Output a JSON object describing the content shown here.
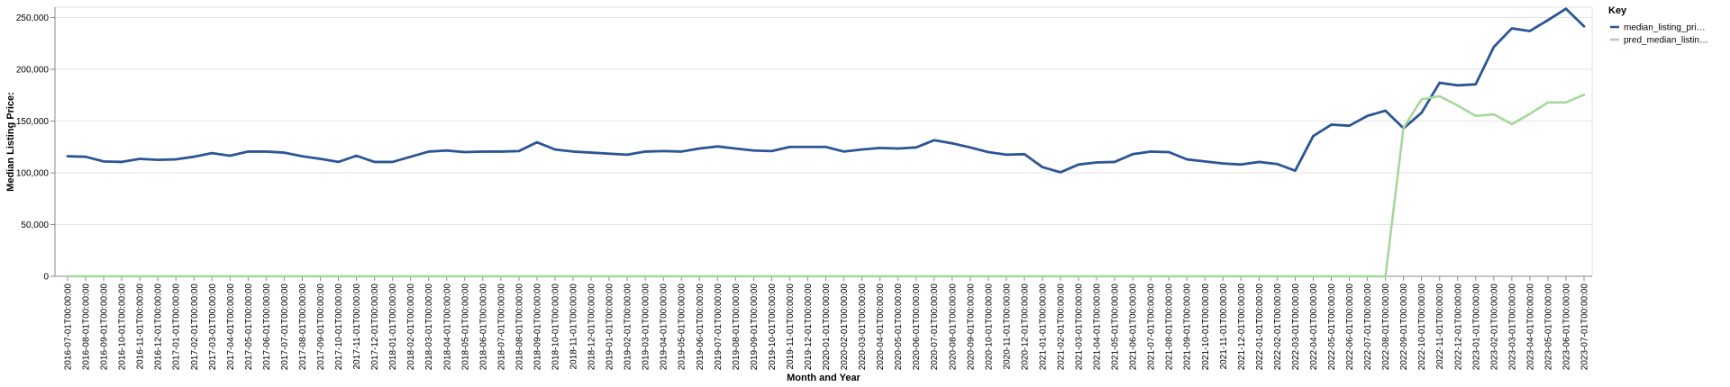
{
  "chart_data": {
    "type": "line",
    "xlabel": "Month and Year",
    "ylabel": "Median Listing Price:",
    "ylim": [
      0,
      260000
    ],
    "yticks": [
      0,
      50000,
      100000,
      150000,
      200000,
      250000
    ],
    "ytick_labels": [
      "0",
      "50,000",
      "100,000",
      "150,000",
      "200,000",
      "250,000"
    ],
    "grid": true,
    "legend_title": "Key",
    "legend_position": "right",
    "x": [
      "2016-07-01T00:00:00",
      "2016-08-01T00:00:00",
      "2016-09-01T00:00:00",
      "2016-10-01T00:00:00",
      "2016-11-01T00:00:00",
      "2016-12-01T00:00:00",
      "2017-01-01T00:00:00",
      "2017-02-01T00:00:00",
      "2017-03-01T00:00:00",
      "2017-04-01T00:00:00",
      "2017-05-01T00:00:00",
      "2017-06-01T00:00:00",
      "2017-07-01T00:00:00",
      "2017-08-01T00:00:00",
      "2017-09-01T00:00:00",
      "2017-10-01T00:00:00",
      "2017-11-01T00:00:00",
      "2017-12-01T00:00:00",
      "2018-01-01T00:00:00",
      "2018-02-01T00:00:00",
      "2018-03-01T00:00:00",
      "2018-04-01T00:00:00",
      "2018-05-01T00:00:00",
      "2018-06-01T00:00:00",
      "2018-07-01T00:00:00",
      "2018-08-01T00:00:00",
      "2018-09-01T00:00:00",
      "2018-10-01T00:00:00",
      "2018-11-01T00:00:00",
      "2018-12-01T00:00:00",
      "2019-01-01T00:00:00",
      "2019-02-01T00:00:00",
      "2019-03-01T00:00:00",
      "2019-04-01T00:00:00",
      "2019-05-01T00:00:00",
      "2019-06-01T00:00:00",
      "2019-07-01T00:00:00",
      "2019-08-01T00:00:00",
      "2019-09-01T00:00:00",
      "2019-10-01T00:00:00",
      "2019-11-01T00:00:00",
      "2019-12-01T00:00:00",
      "2020-01-01T00:00:00",
      "2020-02-01T00:00:00",
      "2020-03-01T00:00:00",
      "2020-04-01T00:00:00",
      "2020-05-01T00:00:00",
      "2020-06-01T00:00:00",
      "2020-07-01T00:00:00",
      "2020-08-01T00:00:00",
      "2020-09-01T00:00:00",
      "2020-10-01T00:00:00",
      "2020-11-01T00:00:00",
      "2020-12-01T00:00:00",
      "2021-01-01T00:00:00",
      "2021-02-01T00:00:00",
      "2021-03-01T00:00:00",
      "2021-04-01T00:00:00",
      "2021-05-01T00:00:00",
      "2021-06-01T00:00:00",
      "2021-07-01T00:00:00",
      "2021-08-01T00:00:00",
      "2021-09-01T00:00:00",
      "2021-10-01T00:00:00",
      "2021-11-01T00:00:00",
      "2021-12-01T00:00:00",
      "2022-01-01T00:00:00",
      "2022-02-01T00:00:00",
      "2022-03-01T00:00:00",
      "2022-04-01T00:00:00",
      "2022-05-01T00:00:00",
      "2022-06-01T00:00:00",
      "2022-07-01T00:00:00",
      "2022-08-01T00:00:00",
      "2022-09-01T00:00:00",
      "2022-10-01T00:00:00",
      "2022-11-01T00:00:00",
      "2022-12-01T00:00:00",
      "2023-01-01T00:00:00",
      "2023-02-01T00:00:00",
      "2023-03-01T00:00:00",
      "2023-04-01T00:00:00",
      "2023-05-01T00:00:00",
      "2023-06-01T00:00:00",
      "2023-07-01T00:00:00"
    ],
    "series": [
      {
        "name": "median_listing_pri…",
        "color": "#2c5596",
        "values": [
          116000,
          115500,
          111000,
          110500,
          113500,
          112500,
          113000,
          115500,
          119000,
          116500,
          120500,
          120500,
          119500,
          116000,
          113500,
          110500,
          116500,
          110500,
          110500,
          115500,
          120500,
          121500,
          120000,
          120500,
          120500,
          121000,
          129500,
          122500,
          120500,
          119500,
          118500,
          117500,
          120500,
          121000,
          120500,
          123500,
          125500,
          123500,
          121500,
          121000,
          125000,
          125000,
          125000,
          120500,
          122500,
          124000,
          123500,
          124500,
          131500,
          128500,
          124500,
          120000,
          117500,
          118000,
          105500,
          100500,
          108000,
          110000,
          110500,
          118000,
          120500,
          120000,
          113000,
          111000,
          109000,
          108000,
          110500,
          108500,
          102000,
          135500,
          146500,
          145500,
          155000,
          160000,
          143000,
          158000,
          187000,
          184500,
          185500,
          221500,
          239500,
          237000,
          247500,
          258500,
          241500
        ]
      },
      {
        "name": "pred_median_listin…",
        "color": "#a5d89b",
        "values": [
          0,
          0,
          0,
          0,
          0,
          0,
          0,
          0,
          0,
          0,
          0,
          0,
          0,
          0,
          0,
          0,
          0,
          0,
          0,
          0,
          0,
          0,
          0,
          0,
          0,
          0,
          0,
          0,
          0,
          0,
          0,
          0,
          0,
          0,
          0,
          0,
          0,
          0,
          0,
          0,
          0,
          0,
          0,
          0,
          0,
          0,
          0,
          0,
          0,
          0,
          0,
          0,
          0,
          0,
          0,
          0,
          0,
          0,
          0,
          0,
          0,
          0,
          0,
          0,
          0,
          0,
          0,
          0,
          0,
          0,
          0,
          0,
          0,
          0,
          143500,
          171000,
          174000,
          165000,
          155000,
          156500,
          147000,
          157000,
          168000,
          168000,
          175500
        ]
      }
    ]
  }
}
